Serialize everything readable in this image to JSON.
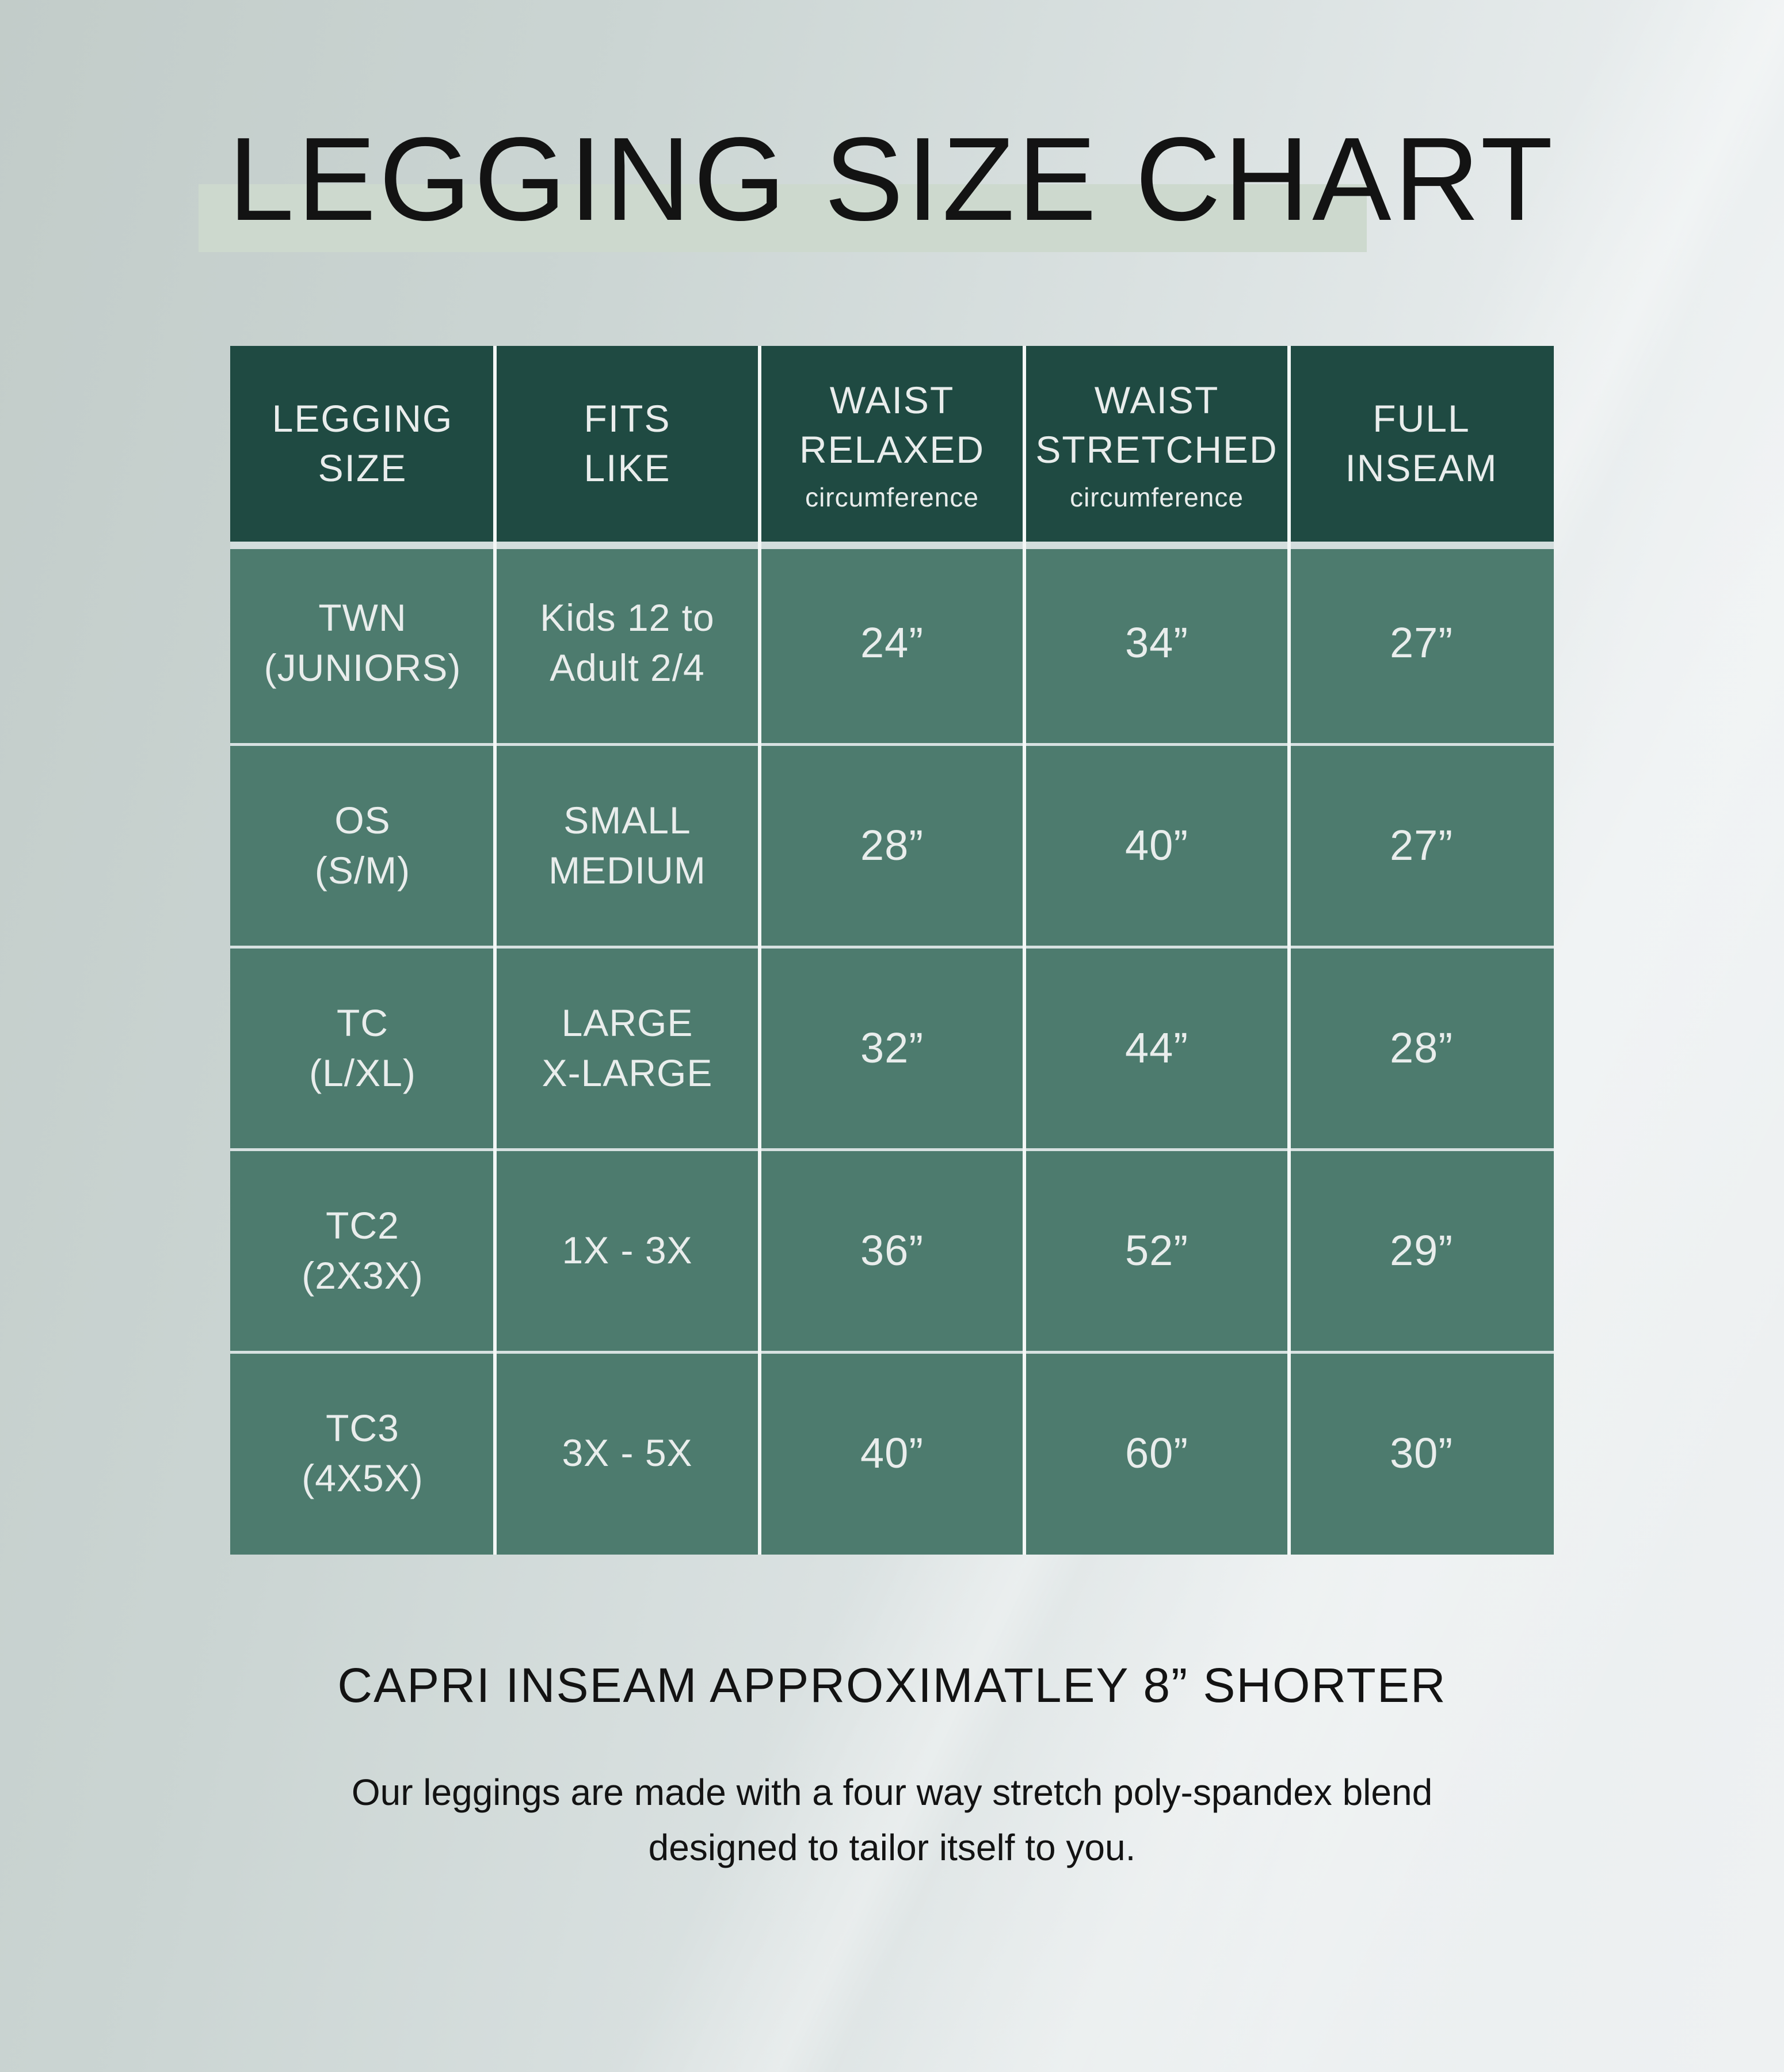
{
  "title": "LEGGING SIZE CHART",
  "chart_data": {
    "type": "table",
    "title": "LEGGING SIZE CHART",
    "header": [
      {
        "line1": "LEGGING",
        "line2": "SIZE",
        "sub": ""
      },
      {
        "line1": "FITS",
        "line2": "LIKE",
        "sub": ""
      },
      {
        "line1": "WAIST",
        "line2": "RELAXED",
        "sub": "circumference"
      },
      {
        "line1": "WAIST",
        "line2": "STRETCHED",
        "sub": "circumference"
      },
      {
        "line1": "FULL",
        "line2": "INSEAM",
        "sub": ""
      }
    ],
    "rows": [
      {
        "cells": [
          {
            "line1": "TWN",
            "line2": "(JUNIORS)"
          },
          {
            "line1": "Kids 12 to",
            "line2": "Adult 2/4"
          },
          {
            "line1": "24”",
            "line2": ""
          },
          {
            "line1": "34”",
            "line2": ""
          },
          {
            "line1": "27”",
            "line2": ""
          }
        ]
      },
      {
        "cells": [
          {
            "line1": "OS",
            "line2": "(S/M)"
          },
          {
            "line1": "SMALL",
            "line2": "MEDIUM"
          },
          {
            "line1": "28”",
            "line2": ""
          },
          {
            "line1": "40”",
            "line2": ""
          },
          {
            "line1": "27”",
            "line2": ""
          }
        ]
      },
      {
        "cells": [
          {
            "line1": "TC",
            "line2": "(L/XL)"
          },
          {
            "line1": "LARGE",
            "line2": "X-LARGE"
          },
          {
            "line1": "32”",
            "line2": ""
          },
          {
            "line1": "44”",
            "line2": ""
          },
          {
            "line1": "28”",
            "line2": ""
          }
        ]
      },
      {
        "cells": [
          {
            "line1": "TC2",
            "line2": "(2X3X)"
          },
          {
            "line1": "1X - 3X",
            "line2": ""
          },
          {
            "line1": "36”",
            "line2": ""
          },
          {
            "line1": "52”",
            "line2": ""
          },
          {
            "line1": "29”",
            "line2": ""
          }
        ]
      },
      {
        "cells": [
          {
            "line1": "TC3",
            "line2": "(4X5X)"
          },
          {
            "line1": "3X - 5X",
            "line2": ""
          },
          {
            "line1": "40”",
            "line2": ""
          },
          {
            "line1": "60”",
            "line2": ""
          },
          {
            "line1": "30”",
            "line2": ""
          }
        ]
      }
    ]
  },
  "footer": {
    "heading": "CAPRI INSEAM APPROXIMATLEY 8” SHORTER",
    "note_line1": "Our leggings are made with a four way stretch poly-spandex blend",
    "note_line2": "designed to tailor itself to you."
  },
  "colors": {
    "header_bg": "#1f4a42",
    "row_bg": "#4d7b6e",
    "cell_text": "#e9edec",
    "page_bg_left": "#c2ccc9",
    "page_bg_right": "#eef1f2",
    "title_highlight": "#cdd9ce",
    "row_divider": "#d7e1e1",
    "column_divider": "#f3f7f6",
    "heading_text": "#131313"
  }
}
